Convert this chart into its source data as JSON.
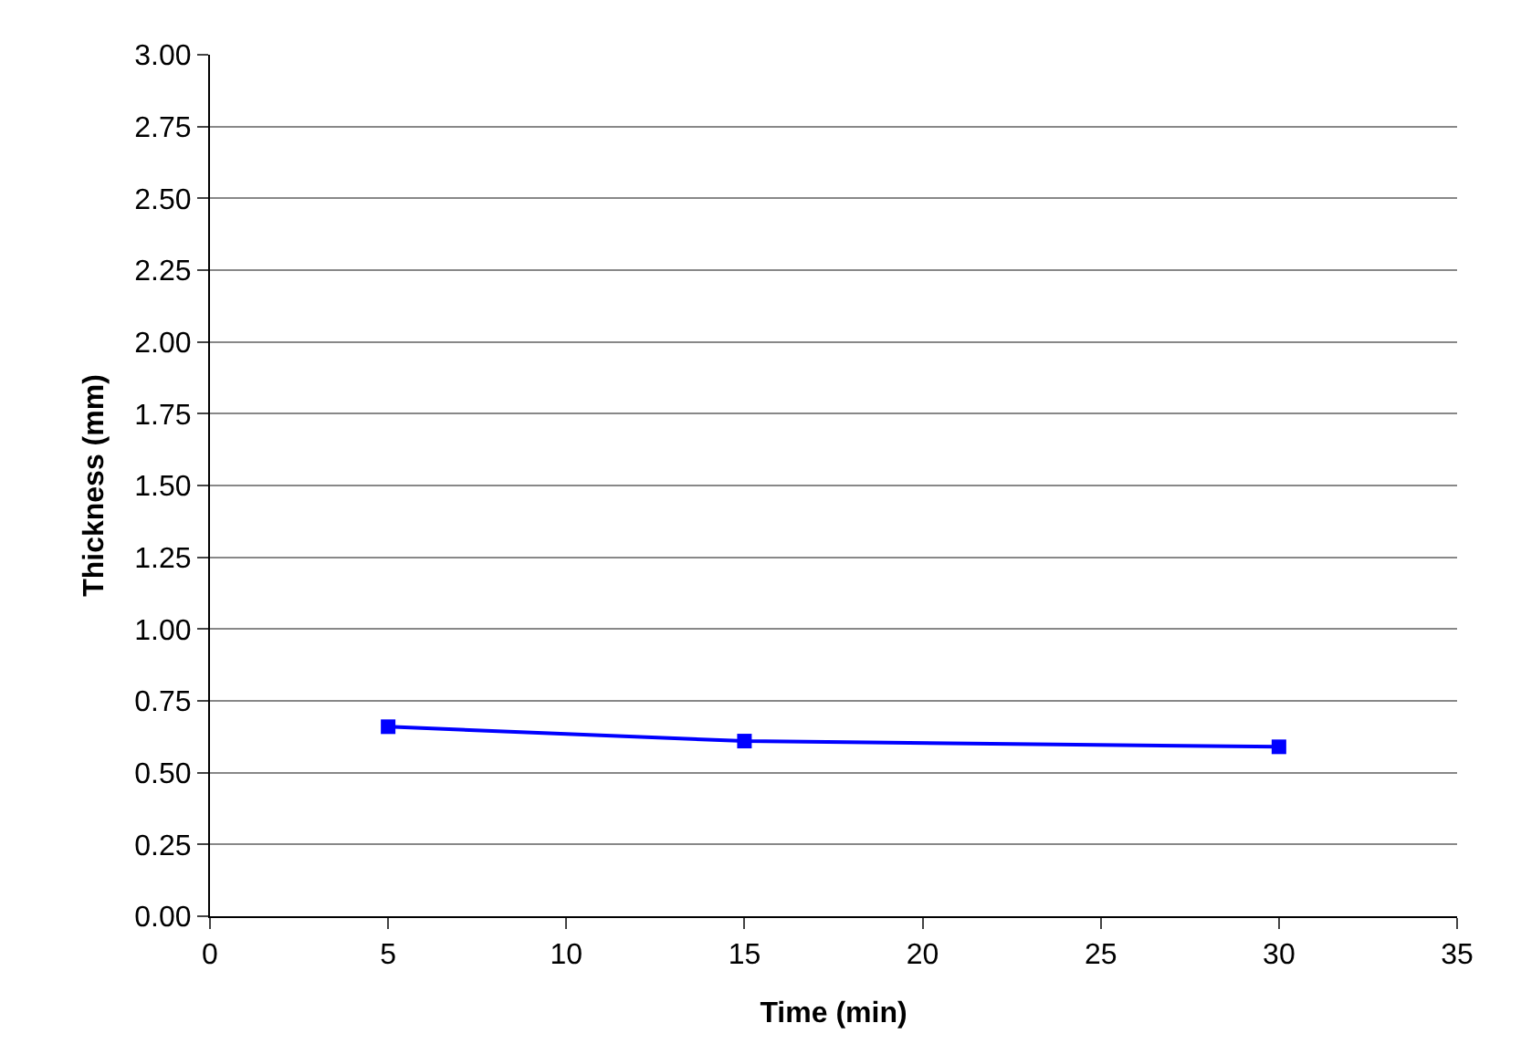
{
  "chart_data": {
    "type": "line",
    "xlabel": "Time (min)",
    "ylabel": "Thickness (mm)",
    "x": [
      5,
      15,
      30
    ],
    "series": [
      {
        "color": "#0000ff",
        "values": [
          0.66,
          0.61,
          0.59
        ]
      }
    ],
    "xlim": [
      0,
      35
    ],
    "xticks": [
      0,
      5,
      10,
      15,
      20,
      25,
      30,
      35
    ],
    "ylim": [
      0,
      3
    ],
    "yticks": [
      {
        "value": 0,
        "label": "0.00"
      },
      {
        "value": 0.25,
        "label": "0.25"
      },
      {
        "value": 0.5,
        "label": "0.50"
      },
      {
        "value": 0.75,
        "label": "0.75"
      },
      {
        "value": 1,
        "label": "1.00"
      },
      {
        "value": 1.25,
        "label": "1.25"
      },
      {
        "value": 1.5,
        "label": "1.50"
      },
      {
        "value": 1.75,
        "label": "1.75"
      },
      {
        "value": 2,
        "label": "2.00"
      },
      {
        "value": 2.25,
        "label": "2.25"
      },
      {
        "value": 2.5,
        "label": "2.50"
      },
      {
        "value": 2.75,
        "label": "2.75"
      },
      {
        "value": 3,
        "label": "3.00"
      }
    ],
    "grid": "y",
    "marker": "square",
    "line_style": "solid"
  }
}
